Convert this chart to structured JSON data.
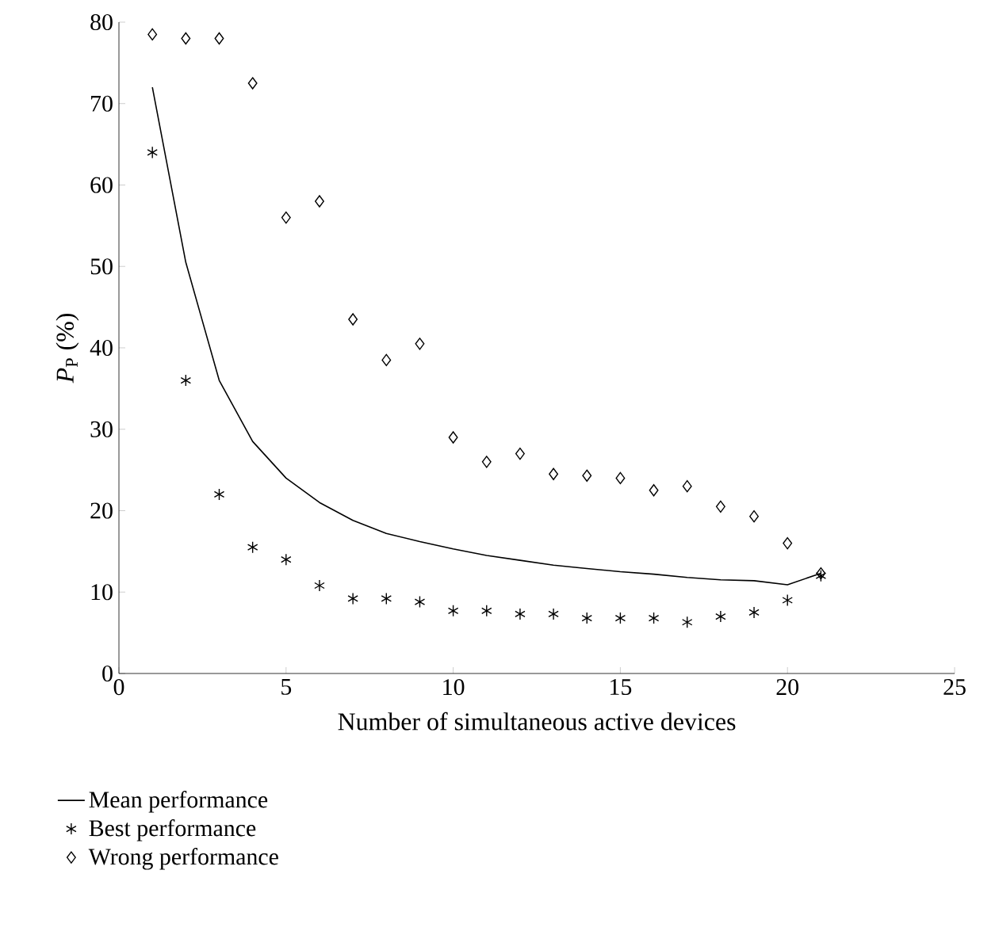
{
  "chart_data": {
    "type": "line",
    "xlabel": "Number of simultaneous active devices",
    "ylabel": "*P*$_{P}$ (%)",
    "x": [
      1,
      2,
      3,
      4,
      5,
      6,
      7,
      8,
      9,
      10,
      11,
      12,
      13,
      14,
      15,
      16,
      17,
      18,
      19,
      20,
      21
    ],
    "series": [
      {
        "name": "Mean performance",
        "color": "#000000",
        "marker": "none",
        "line_style": "solid",
        "values": [
          72,
          50.5,
          36,
          28.5,
          24,
          21,
          18.8,
          17.2,
          16.2,
          15.3,
          14.5,
          13.9,
          13.3,
          12.9,
          12.5,
          12.2,
          11.8,
          11.5,
          11.4,
          10.9,
          12.3
        ]
      },
      {
        "name": "Best performance",
        "type": "scatter",
        "color": "#000000",
        "marker": "cross",
        "values": [
          64,
          36,
          22,
          15.5,
          14,
          10.8,
          9.2,
          9.2,
          8.8,
          7.7,
          7.7,
          7.3,
          7.3,
          6.8,
          6.8,
          6.8,
          6.3,
          7,
          7.5,
          9,
          12
        ]
      },
      {
        "name": "Wrong performance",
        "type": "scatter",
        "color": "#000000",
        "marker": "diamond",
        "values": [
          78.5,
          78,
          78,
          72.5,
          56,
          58,
          43.5,
          38.5,
          40.5,
          29,
          26,
          27,
          24.5,
          24.3,
          24,
          22.5,
          23,
          20.5,
          19.3,
          16,
          12.3
        ]
      }
    ],
    "xlim": [
      0,
      25
    ],
    "xticks": [
      0,
      5,
      10,
      15,
      20,
      25
    ],
    "ylim": [
      0,
      80
    ],
    "yticks": [
      0,
      10,
      20,
      30,
      40,
      50,
      60,
      70,
      80
    ],
    "grid": false,
    "legend": "bottom"
  }
}
